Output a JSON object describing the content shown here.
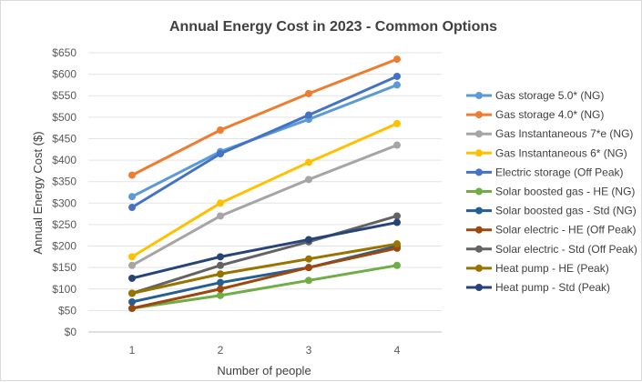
{
  "chart_data": {
    "type": "line",
    "title": "Annual Energy Cost in 2023 - Common Options",
    "xlabel": "Number of people",
    "ylabel": "Annual Energy Cost ($)",
    "x": [
      1,
      2,
      3,
      4
    ],
    "ylim": [
      0,
      650
    ],
    "ytick_step": 50,
    "ytick_labels": [
      "$0",
      "$50",
      "$100",
      "$150",
      "$200",
      "$250",
      "$300",
      "$350",
      "$400",
      "$450",
      "$500",
      "$550",
      "$600",
      "$650"
    ],
    "grid": true,
    "legend_position": "right",
    "series": [
      {
        "name": "Gas storage 5.0* (NG)",
        "color": "#5b9bd5",
        "values": [
          315,
          420,
          495,
          575
        ]
      },
      {
        "name": "Gas storage 4.0* (NG)",
        "color": "#ed7d31",
        "values": [
          365,
          470,
          555,
          635
        ]
      },
      {
        "name": "Gas Instantaneous 7*e (NG)",
        "color": "#a5a5a5",
        "values": [
          155,
          270,
          355,
          435
        ]
      },
      {
        "name": "Gas Instantaneous 6* (NG)",
        "color": "#ffc000",
        "values": [
          175,
          300,
          395,
          485
        ]
      },
      {
        "name": "Electric storage (Off Peak)",
        "color": "#4472c4",
        "values": [
          290,
          415,
          505,
          595
        ]
      },
      {
        "name": "Solar boosted gas - HE (NG)",
        "color": "#70ad47",
        "values": [
          55,
          85,
          120,
          155
        ]
      },
      {
        "name": "Solar boosted gas - Std (NG)",
        "color": "#255e91",
        "values": [
          70,
          115,
          150,
          200
        ]
      },
      {
        "name": "Solar electric - HE (Off Peak)",
        "color": "#9e480e",
        "values": [
          55,
          100,
          150,
          195
        ]
      },
      {
        "name": "Solar electric - Std (Off Peak)",
        "color": "#636363",
        "values": [
          90,
          155,
          210,
          270
        ]
      },
      {
        "name": "Heat pump - HE (Peak)",
        "color": "#997300",
        "values": [
          90,
          135,
          170,
          205
        ]
      },
      {
        "name": "Heat pump - Std (Peak)",
        "color": "#264478",
        "values": [
          125,
          175,
          215,
          255
        ]
      }
    ]
  }
}
